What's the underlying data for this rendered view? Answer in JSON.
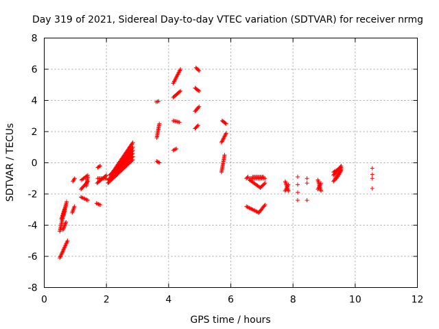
{
  "chart_data": {
    "type": "scatter",
    "title": "Day 319 of 2021, Sidereal Day-to-day VTEC variation (SDTVAR) for receiver nrmg",
    "xlabel": "GPS time / hours",
    "ylabel": "SDTVAR / TECUs",
    "xlim": [
      0,
      12
    ],
    "ylim": [
      -8,
      8
    ],
    "xticks": [
      0,
      2,
      4,
      6,
      8,
      10,
      12
    ],
    "yticks": [
      -8,
      -6,
      -4,
      -2,
      0,
      2,
      4,
      6,
      8
    ],
    "xtick_labels": [
      "0",
      "2",
      "4",
      "6",
      "8",
      "10",
      "12"
    ],
    "ytick_labels": [
      "-8",
      "-6",
      "-4",
      "-2",
      "0",
      "2",
      "4",
      "6",
      "8"
    ],
    "grid": true,
    "marker": "+",
    "color": "#ff0000",
    "series": [
      {
        "name": "SDTVAR",
        "segments": [
          [
            [
              0.5,
              -6.1
            ],
            [
              0.75,
              -5.0
            ]
          ],
          [
            [
              0.5,
              -4.4
            ],
            [
              0.65,
              -3.0
            ]
          ],
          [
            [
              0.55,
              -3.6
            ],
            [
              0.7,
              -2.7
            ]
          ],
          [
            [
              0.6,
              -4.3
            ],
            [
              0.7,
              -3.8
            ]
          ],
          [
            [
              0.62,
              -3.4
            ],
            [
              0.72,
              -2.5
            ]
          ],
          [
            [
              0.9,
              -3.2
            ],
            [
              0.97,
              -2.8
            ]
          ],
          [
            [
              0.92,
              -1.2
            ],
            [
              0.98,
              -1.0
            ]
          ],
          [
            [
              1.18,
              -2.2
            ],
            [
              1.4,
              -2.4
            ]
          ],
          [
            [
              1.18,
              -1.7
            ],
            [
              1.4,
              -1.2
            ]
          ],
          [
            [
              1.2,
              -1.1
            ],
            [
              1.4,
              -0.8
            ]
          ],
          [
            [
              1.35,
              -1.5
            ],
            [
              1.4,
              -0.9
            ]
          ],
          [
            [
              1.68,
              -2.6
            ],
            [
              1.8,
              -2.7
            ]
          ],
          [
            [
              1.7,
              -1.3
            ],
            [
              2.0,
              -0.8
            ]
          ],
          [
            [
              1.72,
              -1.0
            ],
            [
              2.0,
              -1.0
            ]
          ],
          [
            [
              1.72,
              -0.3
            ],
            [
              1.8,
              -0.2
            ]
          ],
          [
            [
              2.05,
              -1.3
            ],
            [
              2.85,
              0.2
            ]
          ],
          [
            [
              2.05,
              -1.1
            ],
            [
              2.85,
              0.4
            ]
          ],
          [
            [
              2.1,
              -0.8
            ],
            [
              2.85,
              0.6
            ]
          ],
          [
            [
              2.2,
              -0.6
            ],
            [
              2.85,
              1.3
            ]
          ],
          [
            [
              2.3,
              -0.5
            ],
            [
              2.85,
              1.0
            ]
          ],
          [
            [
              2.4,
              -0.3
            ],
            [
              2.85,
              0.8
            ]
          ],
          [
            [
              3.62,
              1.6
            ],
            [
              3.7,
              2.5
            ]
          ],
          [
            [
              3.6,
              3.9
            ],
            [
              3.68,
              3.95
            ]
          ],
          [
            [
              3.62,
              0.1
            ],
            [
              3.7,
              0.0
            ]
          ],
          [
            [
              4.15,
              0.8
            ],
            [
              4.25,
              0.9
            ]
          ],
          [
            [
              4.15,
              2.7
            ],
            [
              4.35,
              2.6
            ]
          ],
          [
            [
              4.15,
              4.2
            ],
            [
              4.38,
              4.6
            ]
          ],
          [
            [
              4.15,
              5.1
            ],
            [
              4.38,
              6.0
            ]
          ],
          [
            [
              4.85,
              2.2
            ],
            [
              4.95,
              2.4
            ]
          ],
          [
            [
              4.85,
              3.3
            ],
            [
              4.98,
              3.6
            ]
          ],
          [
            [
              4.85,
              4.8
            ],
            [
              4.98,
              4.6
            ]
          ],
          [
            [
              4.88,
              6.1
            ],
            [
              4.98,
              5.9
            ]
          ],
          [
            [
              5.7,
              -0.6
            ],
            [
              5.8,
              0.5
            ]
          ],
          [
            [
              5.7,
              1.3
            ],
            [
              5.85,
              1.9
            ]
          ],
          [
            [
              5.72,
              2.7
            ],
            [
              5.85,
              2.5
            ]
          ],
          [
            [
              6.5,
              -1.0
            ],
            [
              6.55,
              -0.9
            ]
          ],
          [
            [
              6.5,
              -2.8
            ],
            [
              6.9,
              -3.2
            ]
          ],
          [
            [
              6.9,
              -3.2
            ],
            [
              7.1,
              -2.7
            ]
          ],
          [
            [
              6.6,
              -1.1
            ],
            [
              6.95,
              -1.6
            ]
          ],
          [
            [
              6.95,
              -1.6
            ],
            [
              7.1,
              -1.3
            ]
          ],
          [
            [
              6.6,
              -1.0
            ],
            [
              7.1,
              -1.0
            ]
          ],
          [
            [
              6.7,
              -0.9
            ],
            [
              7.05,
              -0.9
            ]
          ],
          [
            [
              7.75,
              -1.2
            ],
            [
              7.85,
              -1.8
            ]
          ],
          [
            [
              7.75,
              -1.8
            ],
            [
              7.85,
              -1.4
            ]
          ],
          [
            [
              8.8,
              -1.1
            ],
            [
              8.9,
              -1.8
            ]
          ],
          [
            [
              8.8,
              -1.7
            ],
            [
              8.9,
              -1.3
            ]
          ],
          [
            [
              9.3,
              -1.2
            ],
            [
              9.55,
              -0.4
            ]
          ],
          [
            [
              9.3,
              -0.8
            ],
            [
              9.55,
              -0.2
            ]
          ],
          [
            [
              9.3,
              -0.6
            ],
            [
              9.55,
              -0.3
            ]
          ],
          [
            [
              9.4,
              -1.0
            ],
            [
              9.55,
              -0.5
            ]
          ]
        ],
        "points": [
          [
            8.15,
            -0.9
          ],
          [
            8.15,
            -1.4
          ],
          [
            8.15,
            -1.9
          ],
          [
            8.15,
            -2.4
          ],
          [
            8.45,
            -1.0
          ],
          [
            8.45,
            -1.3
          ],
          [
            8.45,
            -2.4
          ],
          [
            10.55,
            -0.35
          ],
          [
            10.55,
            -0.75
          ],
          [
            10.55,
            -1.0
          ],
          [
            10.55,
            -1.65
          ]
        ]
      }
    ]
  }
}
